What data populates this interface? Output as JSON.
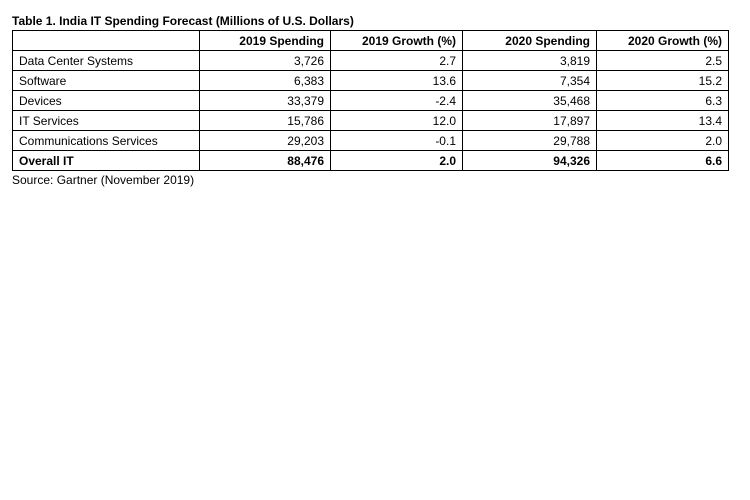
{
  "chart_data": {
    "type": "table",
    "title": "Table 1. India IT Spending Forecast (Millions of U.S. Dollars)",
    "columns": [
      "",
      "2019 Spending",
      "2019 Growth (%)",
      "2020 Spending",
      "2020 Growth (%)"
    ],
    "rows": [
      {
        "label": "Data Center Systems",
        "cells": [
          "3,726",
          "2.7",
          "3,819",
          "2.5"
        ]
      },
      {
        "label": "Software",
        "cells": [
          "6,383",
          "13.6",
          "7,354",
          "15.2"
        ]
      },
      {
        "label": "Devices",
        "cells": [
          "33,379",
          "-2.4",
          "35,468",
          "6.3"
        ]
      },
      {
        "label": "IT Services",
        "cells": [
          "15,786",
          "12.0",
          "17,897",
          "13.4"
        ]
      },
      {
        "label": "Communications Services",
        "cells": [
          "29,203",
          "-0.1",
          "29,788",
          "2.0"
        ]
      }
    ],
    "total": {
      "label": "Overall IT",
      "cells": [
        "88,476",
        "2.0",
        "94,326",
        "6.6"
      ]
    },
    "source": "Source: Gartner (November 2019)"
  }
}
